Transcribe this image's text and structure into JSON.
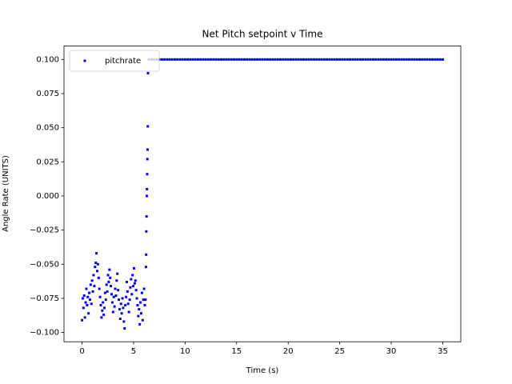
{
  "chart_data": {
    "type": "scatter",
    "title": "Net Pitch setpoint v Time",
    "x_label": "Time (s)",
    "y_label": "Angle Rate (UNITS)",
    "xlim": [
      -1.75,
      36.75
    ],
    "ylim": [
      -0.1068,
      0.1098
    ],
    "xticks": [
      0,
      5,
      10,
      15,
      20,
      25,
      30,
      35
    ],
    "yticks": [
      {
        "value": -0.1,
        "label": "−0.100"
      },
      {
        "value": -0.075,
        "label": "−0.075"
      },
      {
        "value": -0.05,
        "label": "−0.050"
      },
      {
        "value": -0.025,
        "label": "−0.025"
      },
      {
        "value": 0,
        "label": "0.000"
      },
      {
        "value": 0.025,
        "label": "0.025"
      },
      {
        "value": 0.05,
        "label": "0.050"
      },
      {
        "value": 0.075,
        "label": "0.075"
      },
      {
        "value": 0.1,
        "label": "0.100"
      }
    ],
    "grid": false,
    "legend": "upper left",
    "series": [
      {
        "name": "pitchrate",
        "color": "#0000ff",
        "x": [
          0.0,
          0.07,
          0.14,
          0.21,
          0.28,
          0.35,
          0.42,
          0.49,
          0.56,
          0.63,
          0.7,
          0.77,
          0.84,
          0.91,
          0.98,
          1.05,
          1.12,
          1.19,
          1.26,
          1.33,
          1.4,
          1.47,
          1.54,
          1.61,
          1.68,
          1.75,
          1.82,
          1.89,
          1.96,
          2.03,
          2.1,
          2.17,
          2.24,
          2.31,
          2.38,
          2.45,
          2.52,
          2.59,
          2.66,
          2.73,
          2.8,
          2.87,
          2.94,
          3.01,
          3.08,
          3.15,
          3.22,
          3.29,
          3.36,
          3.43,
          3.5,
          3.57,
          3.64,
          3.71,
          3.78,
          3.85,
          3.92,
          3.99,
          4.06,
          4.13,
          4.2,
          4.27,
          4.34,
          4.41,
          4.48,
          4.55,
          4.62,
          4.69,
          4.76,
          4.83,
          4.9,
          4.97,
          5.04,
          5.11,
          5.18,
          5.25,
          5.32,
          5.39,
          5.46,
          5.53,
          5.6,
          5.67,
          5.74,
          5.81,
          5.88,
          5.95,
          6.02,
          6.09,
          6.16,
          6.2,
          6.22,
          6.24,
          6.26,
          6.28,
          6.3,
          6.32,
          6.34,
          6.36,
          6.38,
          6.4,
          6.5,
          6.75,
          7,
          7.25,
          7.5,
          7.75,
          8,
          8.25,
          8.5,
          8.75,
          9,
          9.25,
          9.5,
          9.75,
          10,
          10.25,
          10.5,
          10.75,
          11,
          11.25,
          11.5,
          11.75,
          12,
          12.25,
          12.5,
          12.75,
          13,
          13.25,
          13.5,
          13.75,
          14,
          14.25,
          14.5,
          14.75,
          15,
          15.25,
          15.5,
          15.75,
          16,
          16.25,
          16.5,
          16.75,
          17,
          17.25,
          17.5,
          17.75,
          18,
          18.25,
          18.5,
          18.75,
          19,
          19.25,
          19.5,
          19.75,
          20,
          20.25,
          20.5,
          20.75,
          21,
          21.25,
          21.5,
          21.75,
          22,
          22.25,
          22.5,
          22.75,
          23,
          23.25,
          23.5,
          23.75,
          24,
          24.25,
          24.5,
          24.75,
          25,
          25.25,
          25.5,
          25.75,
          26,
          26.25,
          26.5,
          26.75,
          27,
          27.25,
          27.5,
          27.75,
          28,
          28.25,
          28.5,
          28.75,
          29,
          29.25,
          29.5,
          29.75,
          30,
          30.25,
          30.5,
          30.75,
          31,
          31.25,
          31.5,
          31.75,
          32,
          32.25,
          32.5,
          32.75,
          33,
          33.25,
          33.5,
          33.75,
          34,
          34.25,
          34.5,
          34.75,
          35
        ],
        "values": [
          -0.091,
          -0.075,
          -0.082,
          -0.073,
          -0.089,
          -0.078,
          -0.068,
          -0.08,
          -0.074,
          -0.086,
          -0.071,
          -0.076,
          -0.065,
          -0.079,
          -0.062,
          -0.07,
          -0.058,
          -0.066,
          -0.052,
          -0.049,
          -0.042,
          -0.055,
          -0.05,
          -0.06,
          -0.068,
          -0.074,
          -0.08,
          -0.089,
          -0.084,
          -0.078,
          -0.087,
          -0.082,
          -0.071,
          -0.076,
          -0.065,
          -0.07,
          -0.058,
          -0.063,
          -0.054,
          -0.06,
          -0.066,
          -0.072,
          -0.078,
          -0.085,
          -0.074,
          -0.081,
          -0.068,
          -0.073,
          -0.062,
          -0.057,
          -0.069,
          -0.076,
          -0.083,
          -0.09,
          -0.079,
          -0.086,
          -0.075,
          -0.082,
          -0.092,
          -0.097,
          -0.08,
          -0.074,
          -0.063,
          -0.07,
          -0.079,
          -0.085,
          -0.076,
          -0.067,
          -0.061,
          -0.072,
          -0.058,
          -0.066,
          -0.053,
          -0.064,
          -0.062,
          -0.069,
          -0.075,
          -0.08,
          -0.088,
          -0.083,
          -0.094,
          -0.078,
          -0.086,
          -0.071,
          -0.091,
          -0.076,
          -0.068,
          -0.08,
          -0.076,
          -0.052,
          -0.043,
          -0.026,
          -0.015,
          0.0,
          0.005,
          0.016,
          0.027,
          0.034,
          0.051,
          0.09,
          0.1,
          0.1,
          0.1,
          0.1,
          0.1,
          0.1,
          0.1,
          0.1,
          0.1,
          0.1,
          0.1,
          0.1,
          0.1,
          0.1,
          0.1,
          0.1,
          0.1,
          0.1,
          0.1,
          0.1,
          0.1,
          0.1,
          0.1,
          0.1,
          0.1,
          0.1,
          0.1,
          0.1,
          0.1,
          0.1,
          0.1,
          0.1,
          0.1,
          0.1,
          0.1,
          0.1,
          0.1,
          0.1,
          0.1,
          0.1,
          0.1,
          0.1,
          0.1,
          0.1,
          0.1,
          0.1,
          0.1,
          0.1,
          0.1,
          0.1,
          0.1,
          0.1,
          0.1,
          0.1,
          0.1,
          0.1,
          0.1,
          0.1,
          0.1,
          0.1,
          0.1,
          0.1,
          0.1,
          0.1,
          0.1,
          0.1,
          0.1,
          0.1,
          0.1,
          0.1,
          0.1,
          0.1,
          0.1,
          0.1,
          0.1,
          0.1,
          0.1,
          0.1,
          0.1,
          0.1,
          0.1,
          0.1,
          0.1,
          0.1,
          0.1,
          0.1,
          0.1,
          0.1,
          0.1,
          0.1,
          0.1,
          0.1,
          0.1,
          0.1,
          0.1,
          0.1,
          0.1,
          0.1,
          0.1,
          0.1,
          0.1,
          0.1,
          0.1,
          0.1,
          0.1,
          0.1,
          0.1,
          0.1,
          0.1,
          0.1,
          0.1,
          0.1,
          0.1,
          0.1,
          0.1
        ]
      }
    ]
  }
}
